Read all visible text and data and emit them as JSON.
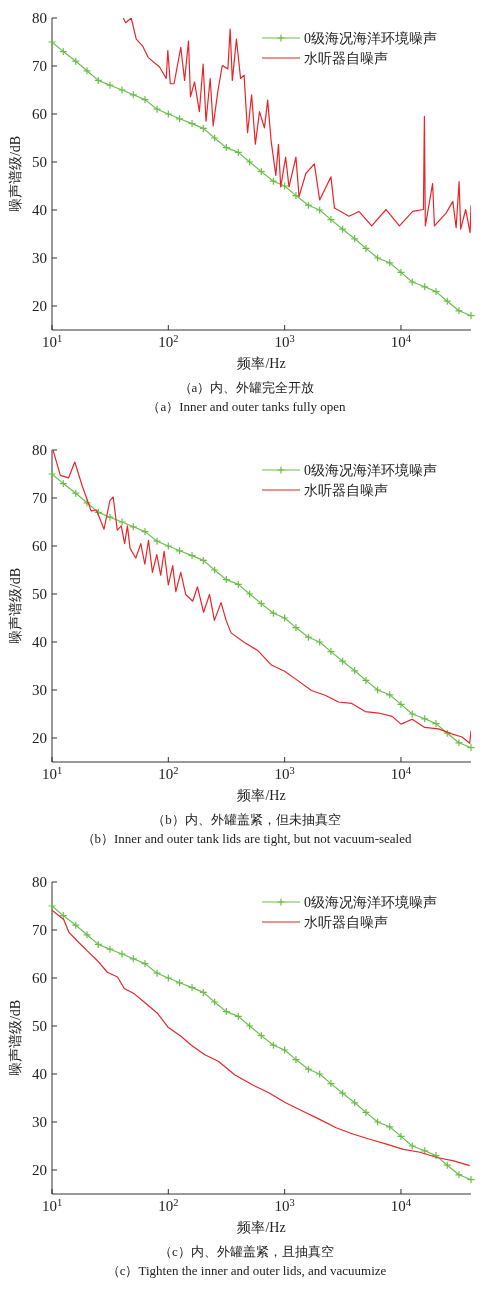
{
  "chart_data": [
    {
      "type": "line",
      "title": "（a）内、外罐完全开放",
      "subtitle": "（a）Inner and outer tanks fully open",
      "xlabel": "频率/Hz",
      "ylabel": "噪声谱级/dB",
      "log": "x",
      "xlim": [
        10,
        40000
      ],
      "ylim": [
        15,
        80
      ],
      "xticks": [
        {
          "value": 10,
          "label": "10$^{1}$"
        },
        {
          "value": 100,
          "label": "10$^{2}$"
        },
        {
          "value": 1000,
          "label": "10$^{3}$"
        },
        {
          "value": 10000,
          "label": "10$^{4}$"
        }
      ],
      "yticks": [
        20,
        30,
        40,
        50,
        60,
        70,
        80
      ],
      "legend": "top right",
      "series": [
        {
          "name": "0级海况海洋环境噪声",
          "color": "#6abf4b",
          "marker": "cross",
          "x": [
            10,
            12.5,
            16,
            20,
            25,
            31.5,
            40,
            50,
            63,
            80,
            100,
            125,
            160,
            200,
            250,
            315,
            400,
            500,
            630,
            800,
            1000,
            1250,
            1600,
            2000,
            2500,
            3150,
            4000,
            5000,
            6300,
            8000,
            10000,
            12500,
            16000,
            20000,
            25000,
            31500,
            40000
          ],
          "values": [
            75,
            73,
            71,
            69,
            67,
            66,
            65,
            64,
            63,
            61,
            60,
            59,
            58,
            57,
            55,
            53,
            52,
            50,
            48,
            46,
            45,
            43,
            41,
            40,
            38,
            36,
            34,
            32,
            30,
            29,
            27,
            25,
            24,
            23,
            21,
            19,
            18
          ]
        },
        {
          "name": "水听器自噪声",
          "color": "#e8262a",
          "x": [
            41,
            43,
            48,
            53,
            60,
            67,
            84,
            96,
            99,
            104,
            112,
            128,
            138,
            149,
            155,
            168,
            185,
            199,
            211,
            229,
            243,
            266,
            291,
            325,
            340,
            355,
            385,
            418,
            448,
            480,
            520,
            560,
            608,
            670,
            715,
            765,
            840,
            885,
            925,
            1020,
            1090,
            1250,
            1330,
            1520,
            1800,
            2000,
            2500,
            2680,
            3580,
            4350,
            5600,
            7450,
            9700,
            12600,
            15600,
            15900,
            16200,
            18700,
            19400,
            24500,
            27900,
            29800,
            31600,
            32600,
            36000,
            39300,
            40000
          ],
          "values": [
            80,
            79,
            80,
            75.6,
            74.2,
            71.8,
            69.8,
            67.4,
            73.2,
            66.3,
            66.3,
            73.9,
            67,
            75.2,
            63.6,
            66.7,
            60.5,
            70.4,
            58.5,
            67.4,
            57.5,
            64.6,
            70.1,
            69.4,
            77.7,
            67,
            75.6,
            67.4,
            68.1,
            56.1,
            64,
            53.7,
            60.5,
            57.1,
            62.9,
            54.4,
            47.2,
            53.7,
            44.8,
            51,
            44.8,
            51,
            42.8,
            47.6,
            49.6,
            42.1,
            46.9,
            40.4,
            38.7,
            39.7,
            36.7,
            40.1,
            36.7,
            39.7,
            40.1,
            59.5,
            36.7,
            45.5,
            36.7,
            39.4,
            41.8,
            36.3,
            45.9,
            36,
            40.1,
            35.3,
            41
          ]
        }
      ]
    },
    {
      "type": "line",
      "title": "（b）内、外罐盖紧，但未抽真空",
      "subtitle": "（b）Inner and outer tank lids are tight, but not vacuum-sealed",
      "xlabel": "频率/Hz",
      "ylabel": "噪声谱级/dB",
      "log": "x",
      "xlim": [
        10,
        40000
      ],
      "ylim": [
        15,
        80
      ],
      "xticks": [
        {
          "value": 10,
          "label": "10$^{1}$"
        },
        {
          "value": 100,
          "label": "10$^{2}$"
        },
        {
          "value": 1000,
          "label": "10$^{3}$"
        },
        {
          "value": 10000,
          "label": "10$^{4}$"
        }
      ],
      "yticks": [
        20,
        30,
        40,
        50,
        60,
        70,
        80
      ],
      "legend": "top right",
      "series": [
        {
          "name": "0级海况海洋环境噪声",
          "color": "#6abf4b",
          "marker": "cross",
          "x": [
            10,
            12.5,
            16,
            20,
            25,
            31.5,
            40,
            50,
            63,
            80,
            100,
            125,
            160,
            200,
            250,
            315,
            400,
            500,
            630,
            800,
            1000,
            1250,
            1600,
            2000,
            2500,
            3150,
            4000,
            5000,
            6300,
            8000,
            10000,
            12500,
            16000,
            20000,
            25000,
            31500,
            40000
          ],
          "values": [
            75,
            73,
            71,
            69,
            67,
            66,
            65,
            64,
            63,
            61,
            60,
            59,
            58,
            57,
            55,
            53,
            52,
            50,
            48,
            46,
            45,
            43,
            41,
            40,
            38,
            36,
            34,
            32,
            30,
            29,
            27,
            25,
            24,
            23,
            21,
            19,
            18
          ]
        },
        {
          "name": "水听器自噪声",
          "color": "#e8262a",
          "x": [
            10.2,
            11.8,
            13.9,
            15.7,
            18.2,
            21.7,
            24.1,
            28,
            31.5,
            33.6,
            36.4,
            39.4,
            42.1,
            44.5,
            46.9,
            52.5,
            58,
            62.8,
            67.5,
            73,
            79.6,
            86,
            92,
            100,
            109,
            116,
            128,
            141,
            162,
            178,
            201,
            226,
            249,
            284,
            314,
            346,
            451,
            589,
            770,
            1000,
            1310,
            1700,
            2230,
            2900,
            3780,
            4930,
            6440,
            8400,
            10000,
            12500,
            16000,
            21000,
            27000,
            33500,
            39000,
            40000
          ],
          "values": [
            80,
            74.7,
            74.2,
            77.5,
            72.5,
            67.3,
            67.5,
            63.5,
            69.5,
            70.2,
            63.3,
            64.2,
            60.5,
            64.2,
            59.5,
            57.5,
            60.5,
            56.2,
            61.2,
            54.5,
            58.2,
            53.9,
            58.9,
            51.9,
            55.9,
            50.5,
            54.5,
            49.9,
            48.5,
            51.5,
            46.2,
            49.9,
            44.5,
            48.2,
            44.5,
            41.9,
            39.9,
            38.2,
            35.2,
            33.9,
            31.9,
            29.9,
            28.9,
            27.5,
            27.2,
            25.5,
            25.2,
            24.5,
            22.9,
            23.9,
            22.2,
            21.9,
            20.9,
            20.2,
            18.9,
            21.5
          ]
        }
      ]
    },
    {
      "type": "line",
      "title": "（c）内、外罐盖紧，且抽真空",
      "subtitle": "（c）Tighten the inner and outer lids, and vacuumize",
      "xlabel": "频率/Hz",
      "ylabel": "噪声谱级/dB",
      "log": "x",
      "xlim": [
        10,
        40000
      ],
      "ylim": [
        15,
        80
      ],
      "xticks": [
        {
          "value": 10,
          "label": "10$^{1}$"
        },
        {
          "value": 100,
          "label": "10$^{2}$"
        },
        {
          "value": 1000,
          "label": "10$^{3}$"
        },
        {
          "value": 10000,
          "label": "10$^{4}$"
        }
      ],
      "yticks": [
        20,
        30,
        40,
        50,
        60,
        70,
        80
      ],
      "legend": "top right",
      "series": [
        {
          "name": "0级海况海洋环境噪声",
          "color": "#6abf4b",
          "marker": "cross",
          "x": [
            10,
            12.5,
            16,
            20,
            25,
            31.5,
            40,
            50,
            63,
            80,
            100,
            125,
            160,
            200,
            250,
            315,
            400,
            500,
            630,
            800,
            1000,
            1250,
            1600,
            2000,
            2500,
            3150,
            4000,
            5000,
            6300,
            8000,
            10000,
            12500,
            16000,
            20000,
            25000,
            31500,
            40000
          ],
          "values": [
            75,
            73,
            71,
            69,
            67,
            66,
            65,
            64,
            63,
            61,
            60,
            59,
            58,
            57,
            55,
            53,
            52,
            50,
            48,
            46,
            45,
            43,
            41,
            40,
            38,
            36,
            34,
            32,
            30,
            29,
            27,
            25,
            24,
            23,
            21,
            19,
            18
          ]
        },
        {
          "name": "水听器自噪声",
          "color": "#e8262a",
          "x": [
            10,
            12.6,
            14,
            16.5,
            20,
            24.6,
            29.9,
            36.6,
            41.8,
            51,
            62,
            81,
            99,
            129,
            158,
            206,
            271,
            374,
            523,
            730,
            1020,
            1420,
            1980,
            2770,
            3860,
            5390,
            7520,
            10500,
            14600,
            20400,
            28400,
            39000
          ],
          "values": [
            74.1,
            72.2,
            69.5,
            67.7,
            65.7,
            63.6,
            61.2,
            60.2,
            57.8,
            56.7,
            55,
            52.6,
            49.8,
            47.8,
            46,
            44,
            42.6,
            39.8,
            37.8,
            36.1,
            34,
            32.3,
            30.6,
            28.8,
            27.5,
            26.4,
            25.4,
            24.3,
            23.7,
            22.6,
            21.9,
            20.9
          ]
        }
      ]
    }
  ]
}
